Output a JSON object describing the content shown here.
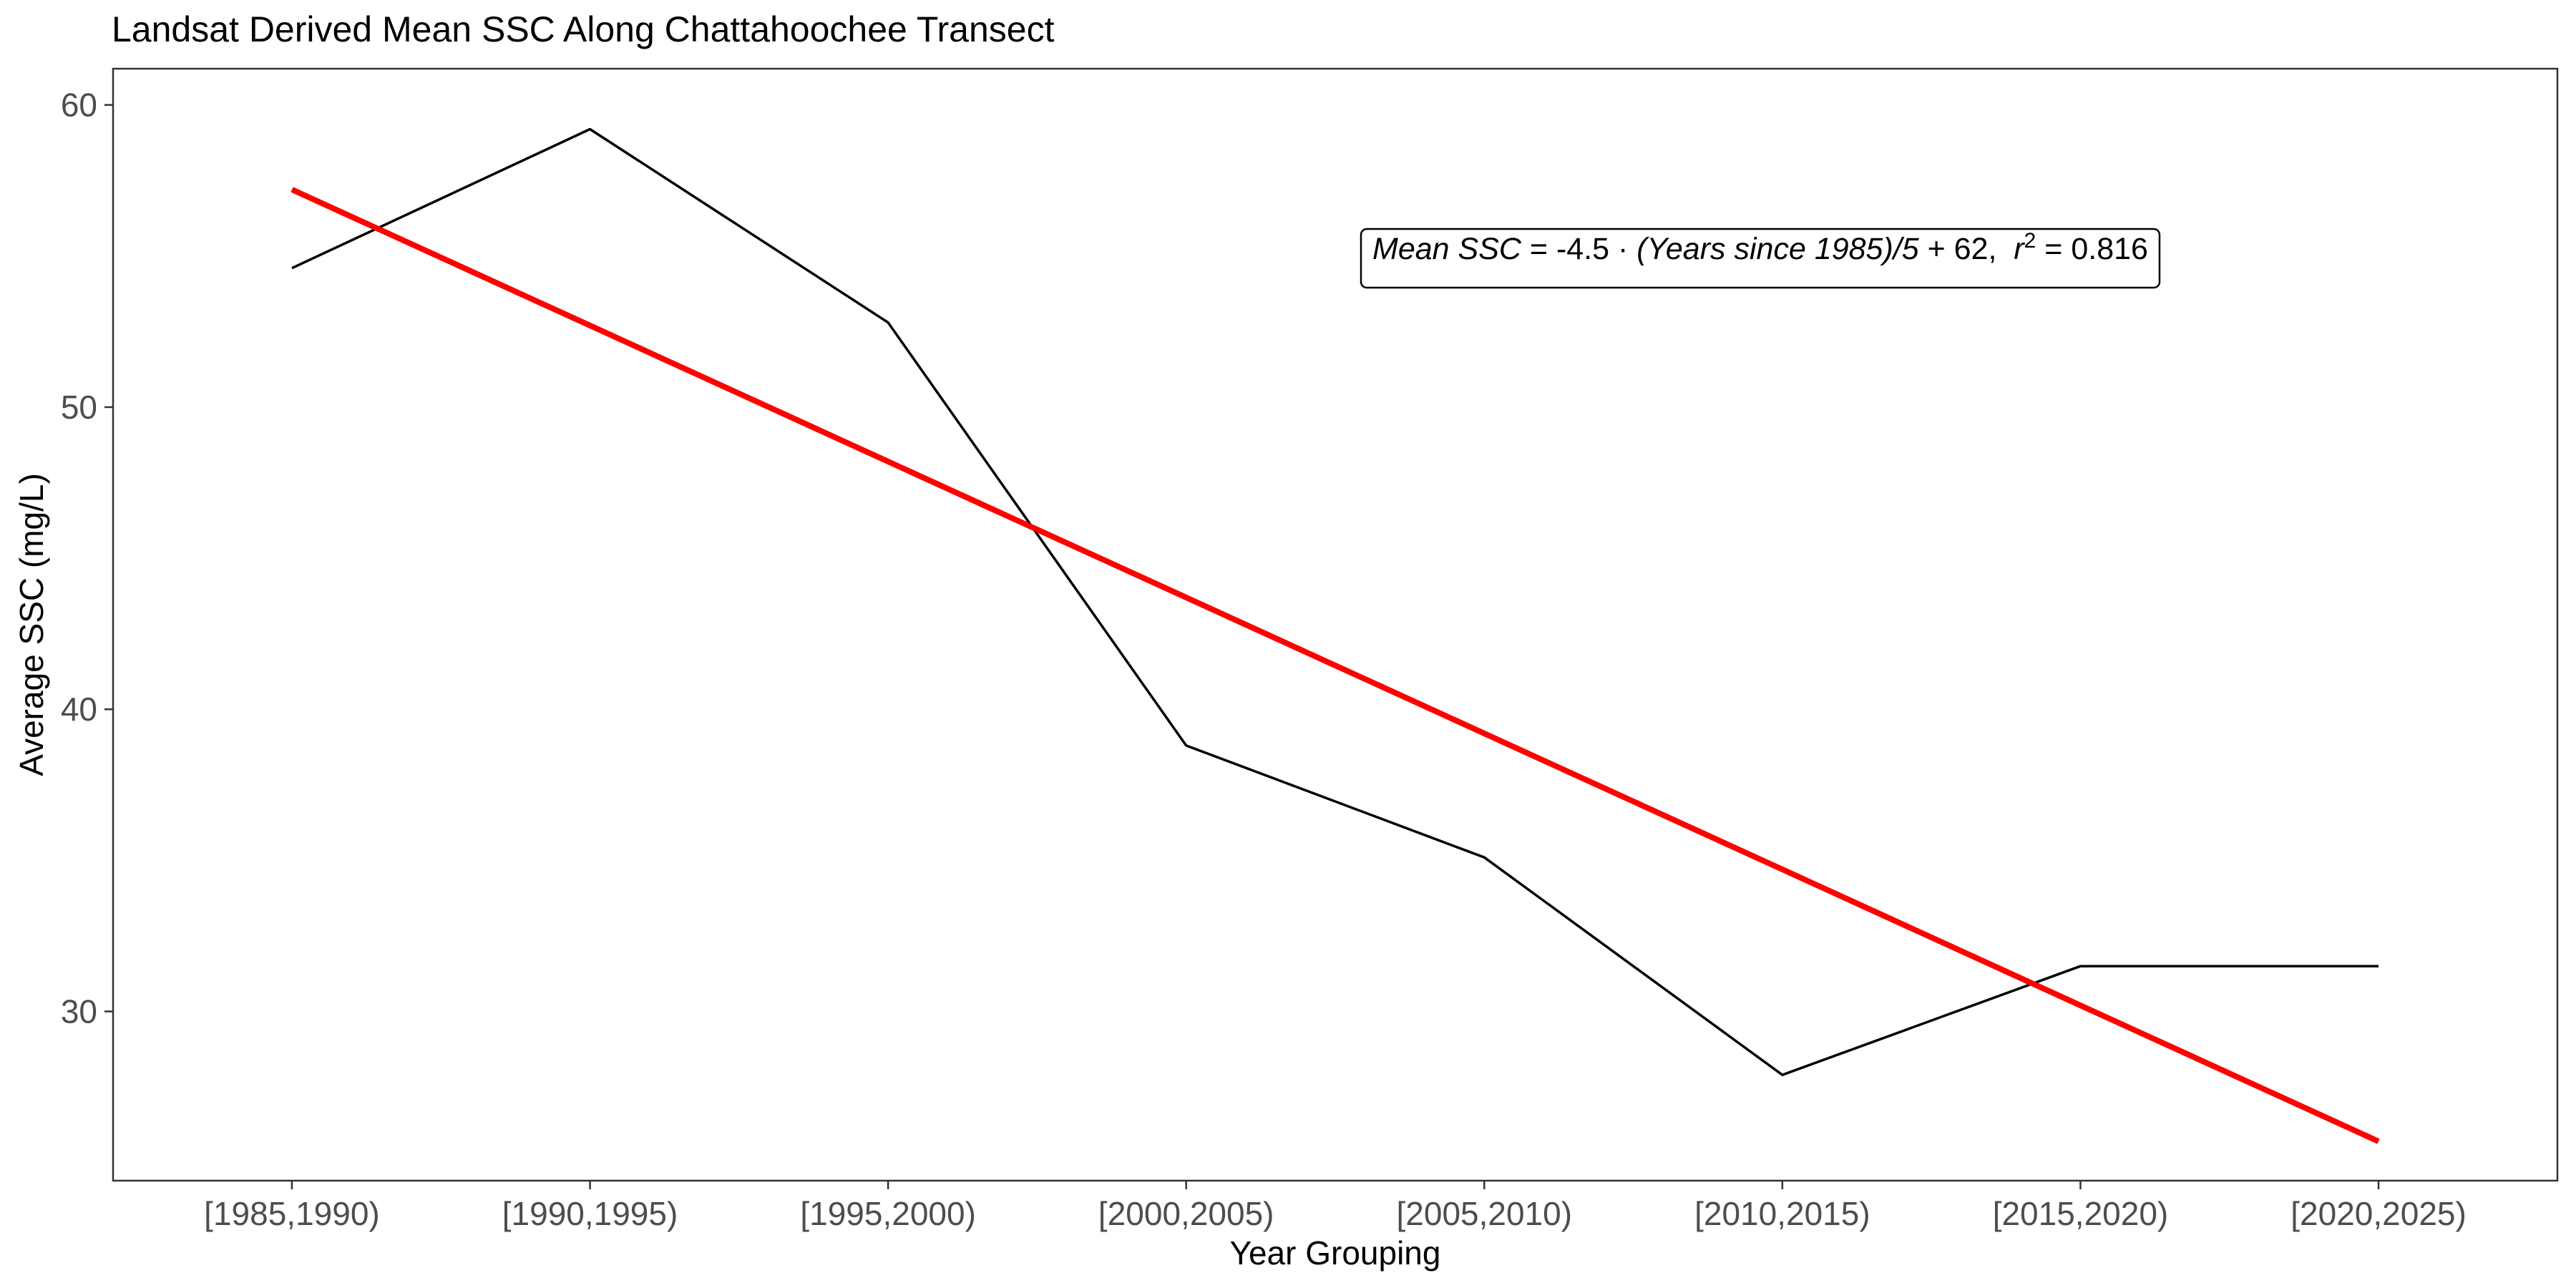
{
  "chart_data": {
    "type": "line",
    "title": "Landsat Derived Mean SSC Along Chattahoochee Transect",
    "xlabel": "Year Grouping",
    "ylabel": "Average SSC (mg/L)",
    "categories": [
      "[1985,1990)",
      "[1990,1995)",
      "[1995,2000)",
      "[2000,2005)",
      "[2005,2010)",
      "[2010,2015)",
      "[2015,2020)",
      "[2020,2025)"
    ],
    "ylim": [
      24.4,
      61.2
    ],
    "yticks": [
      30,
      40,
      50,
      60
    ],
    "grid": false,
    "legend": "none",
    "series": [
      {
        "values": [
          54.6,
          59.2,
          52.8,
          38.8,
          35.1,
          27.9,
          31.5,
          31.5
        ],
        "color": "#000000"
      },
      {
        "values": [
          57.2,
          52.7,
          48.2,
          43.7,
          39.2,
          34.7,
          30.2,
          25.7
        ],
        "color": "#ff0000"
      }
    ],
    "annotation": {
      "parts": [
        {
          "text": "Mean SSC",
          "italic": true
        },
        {
          "text": " = -4.5 · ",
          "italic": false
        },
        {
          "text": "(Years since 1985)/5",
          "italic": true
        },
        {
          "text": " + 62,  ",
          "italic": false
        },
        {
          "text": "r",
          "italic": true
        },
        {
          "text": "2",
          "italic": false,
          "superscript": true
        },
        {
          "text": " = 0.816",
          "italic": false
        }
      ]
    }
  }
}
